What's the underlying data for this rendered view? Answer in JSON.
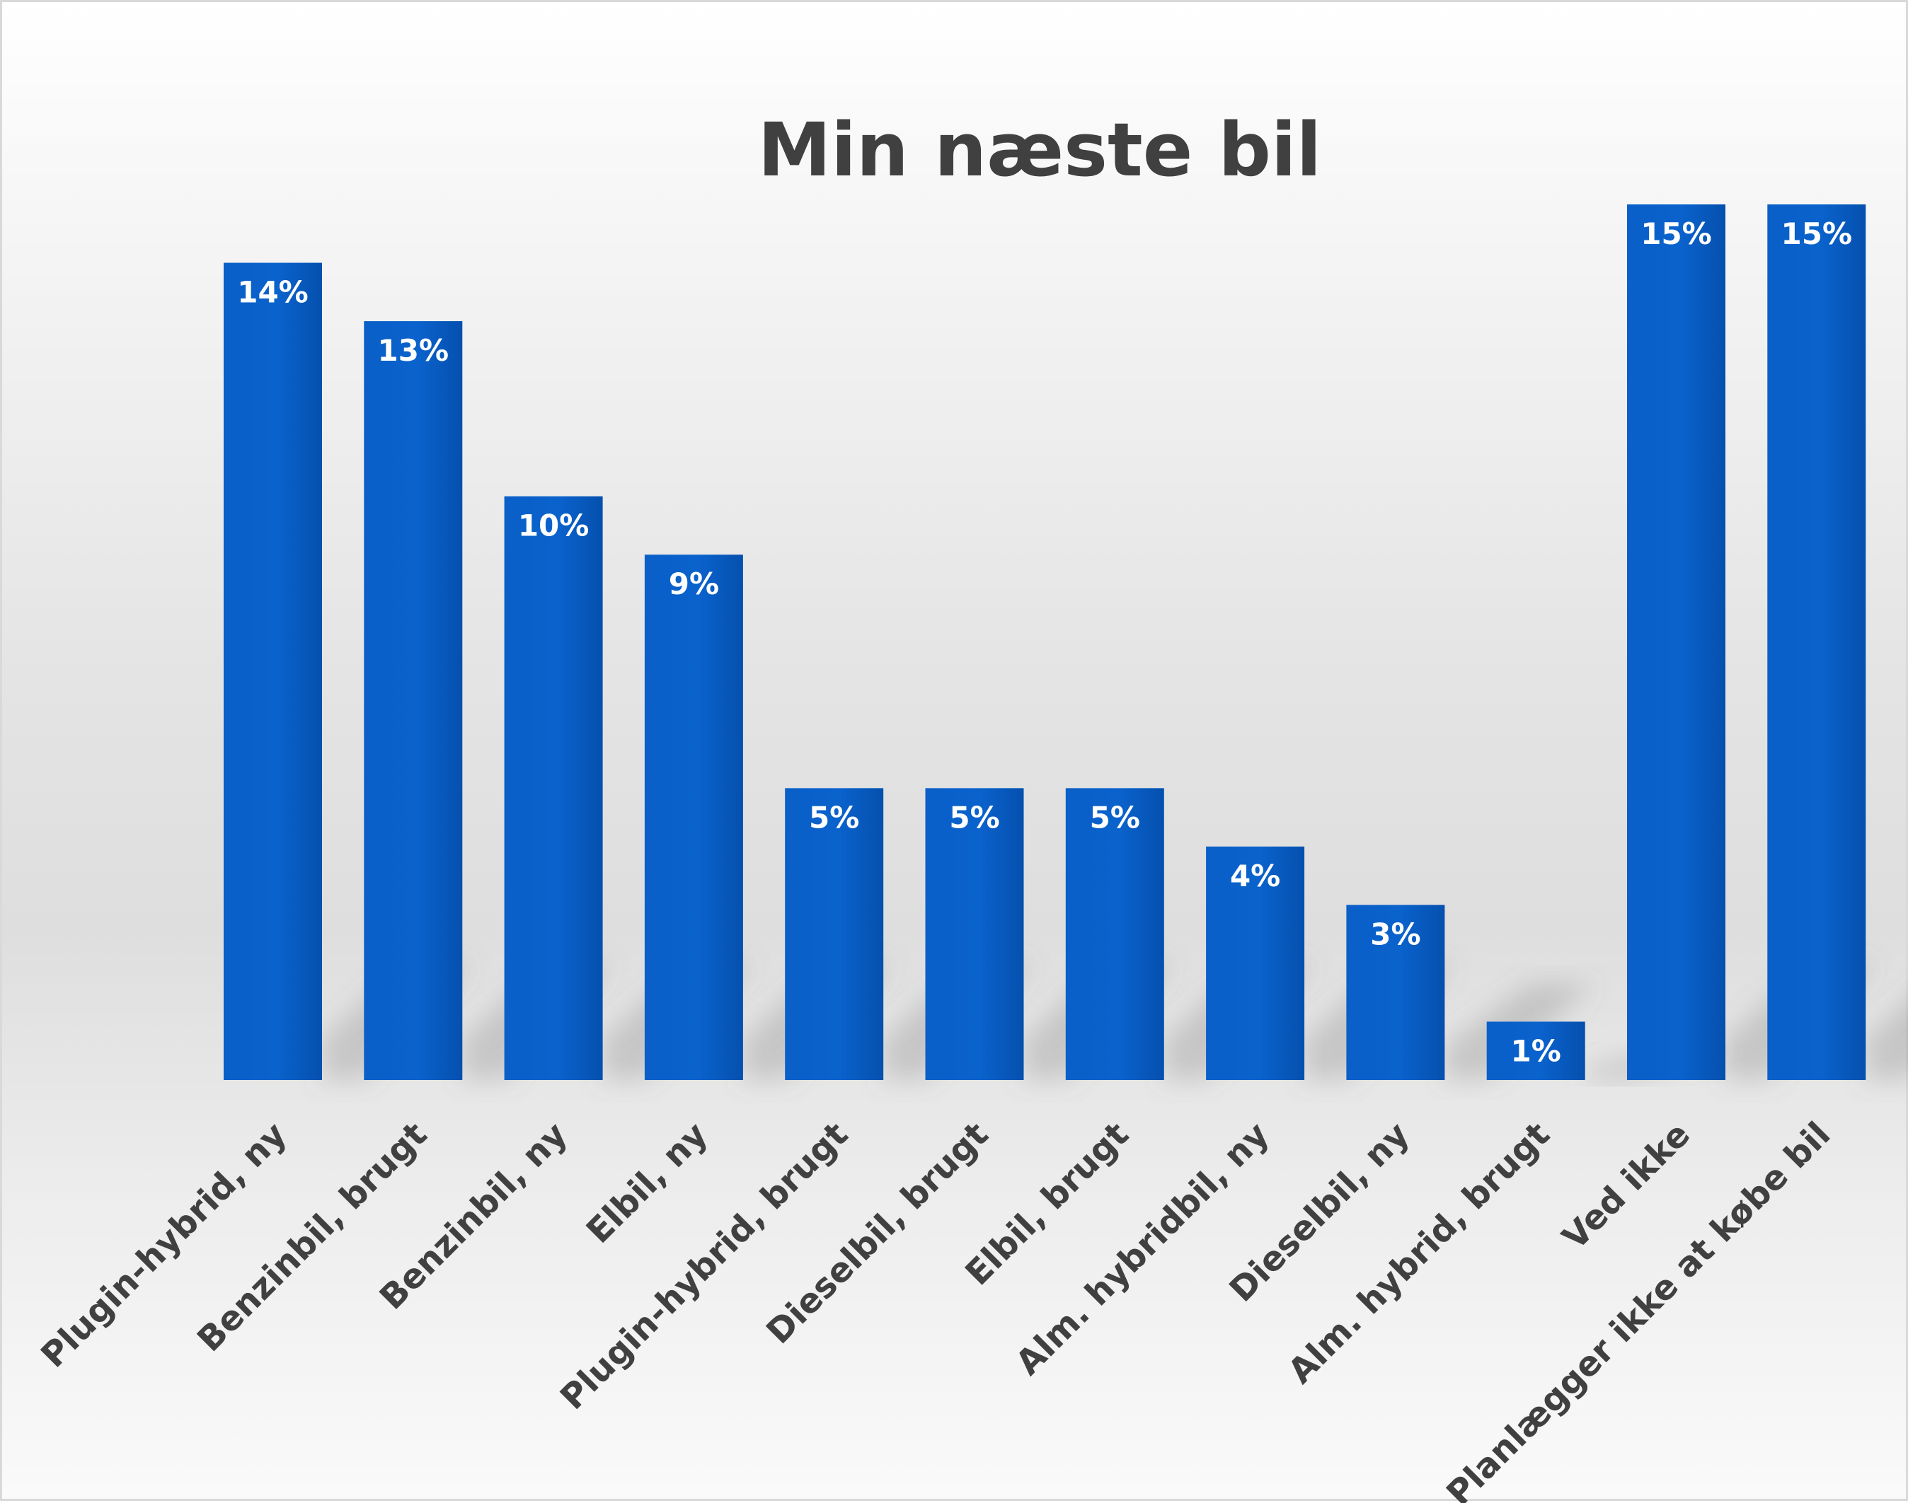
{
  "chart_data": {
    "type": "bar",
    "title": "Min næste bil",
    "xlabel": "",
    "ylabel": "",
    "categories": [
      "Plugin-hybrid, ny",
      "Benzinbil, brugt",
      "Benzinbil, ny",
      "Elbil, ny",
      "Plugin-hybrid, brugt",
      "Dieselbil, brugt",
      "Elbil, brugt",
      "Alm. hybridbil, ny",
      "Dieselbil, ny",
      "Alm. hybrid, brugt",
      "Ved ikke",
      "Planlægger ikke at købe bil"
    ],
    "values": [
      14,
      13,
      10,
      9,
      5,
      5,
      5,
      4,
      3,
      1,
      15,
      15
    ],
    "data_labels": [
      "14%",
      "13%",
      "10%",
      "9%",
      "5%",
      "5%",
      "5%",
      "4%",
      "3%",
      "1%",
      "15%",
      "15%"
    ],
    "value_unit": "%",
    "ylim": [
      0,
      15
    ],
    "grid": false,
    "legend": "none",
    "colors": {
      "bar": "#0a5fc8",
      "bar_dark": "#0550ae",
      "label": "#ffffff",
      "text": "#404040"
    }
  }
}
